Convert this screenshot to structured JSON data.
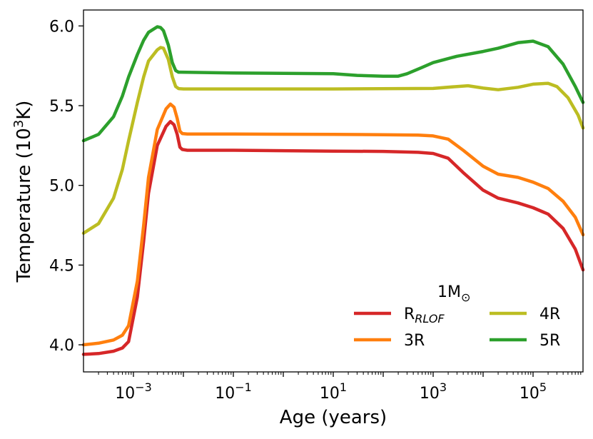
{
  "chart_data": {
    "type": "line",
    "xlabel": "Age (years)",
    "ylabel_main": "Temperature (10",
    "ylabel_sup": "3",
    "ylabel_end": "K)",
    "x_scale": "log",
    "xlim": [
      0.0001,
      1000000
    ],
    "ylim": [
      3.83,
      6.1
    ],
    "x_ticks": [
      {
        "value": 0.001,
        "base": "10",
        "exp": "−3"
      },
      {
        "value": 0.1,
        "base": "10",
        "exp": "−1"
      },
      {
        "value": 10,
        "base": "10",
        "exp": "1"
      },
      {
        "value": 1000,
        "base": "10",
        "exp": "3"
      },
      {
        "value": 100000,
        "base": "10",
        "exp": "5"
      }
    ],
    "y_ticks": [
      4.0,
      4.5,
      5.0,
      5.5,
      6.0
    ],
    "y_tick_labels": [
      "4.0",
      "4.5",
      "5.0",
      "5.5",
      "6.0"
    ],
    "grid": false,
    "legend": {
      "title_main": "1M",
      "title_sub": "⊙",
      "placement": "lower-right",
      "columns": 2
    },
    "series": [
      {
        "name": "R",
        "name_sub": "RLOF",
        "color": "#d62728",
        "points": [
          [
            0.0001,
            3.94
          ],
          [
            0.0002,
            3.945
          ],
          [
            0.0004,
            3.96
          ],
          [
            0.0006,
            3.98
          ],
          [
            0.0008,
            4.02
          ],
          [
            0.0012,
            4.3
          ],
          [
            0.0016,
            4.65
          ],
          [
            0.002,
            4.95
          ],
          [
            0.003,
            5.25
          ],
          [
            0.0045,
            5.37
          ],
          [
            0.0055,
            5.4
          ],
          [
            0.0065,
            5.38
          ],
          [
            0.0075,
            5.32
          ],
          [
            0.0085,
            5.24
          ],
          [
            0.0095,
            5.225
          ],
          [
            0.012,
            5.22
          ],
          [
            0.1,
            5.22
          ],
          [
            10,
            5.215
          ],
          [
            100,
            5.213
          ],
          [
            500,
            5.207
          ],
          [
            1000,
            5.2
          ],
          [
            2000,
            5.17
          ],
          [
            4000,
            5.08
          ],
          [
            10000,
            4.97
          ],
          [
            20000,
            4.92
          ],
          [
            50000,
            4.89
          ],
          [
            100000,
            4.86
          ],
          [
            200000,
            4.82
          ],
          [
            400000,
            4.73
          ],
          [
            700000,
            4.6
          ],
          [
            1000000,
            4.47
          ]
        ]
      },
      {
        "name": "3R",
        "color": "#ff7f0e",
        "points": [
          [
            0.0001,
            4.0
          ],
          [
            0.0002,
            4.01
          ],
          [
            0.0004,
            4.03
          ],
          [
            0.0006,
            4.06
          ],
          [
            0.0008,
            4.12
          ],
          [
            0.0012,
            4.4
          ],
          [
            0.0016,
            4.75
          ],
          [
            0.002,
            5.05
          ],
          [
            0.003,
            5.35
          ],
          [
            0.0045,
            5.48
          ],
          [
            0.0055,
            5.51
          ],
          [
            0.0065,
            5.49
          ],
          [
            0.0075,
            5.42
          ],
          [
            0.0085,
            5.34
          ],
          [
            0.0095,
            5.325
          ],
          [
            0.012,
            5.322
          ],
          [
            0.1,
            5.322
          ],
          [
            10,
            5.32
          ],
          [
            100,
            5.318
          ],
          [
            500,
            5.315
          ],
          [
            1000,
            5.31
          ],
          [
            2000,
            5.29
          ],
          [
            4000,
            5.22
          ],
          [
            10000,
            5.12
          ],
          [
            20000,
            5.07
          ],
          [
            50000,
            5.05
          ],
          [
            100000,
            5.02
          ],
          [
            200000,
            4.98
          ],
          [
            400000,
            4.9
          ],
          [
            700000,
            4.8
          ],
          [
            1000000,
            4.69
          ]
        ]
      },
      {
        "name": "4R",
        "color": "#bcbd22",
        "points": [
          [
            0.0001,
            4.7
          ],
          [
            0.0002,
            4.76
          ],
          [
            0.0004,
            4.92
          ],
          [
            0.0006,
            5.1
          ],
          [
            0.0008,
            5.28
          ],
          [
            0.0012,
            5.52
          ],
          [
            0.0016,
            5.68
          ],
          [
            0.002,
            5.78
          ],
          [
            0.003,
            5.85
          ],
          [
            0.0035,
            5.865
          ],
          [
            0.004,
            5.86
          ],
          [
            0.005,
            5.79
          ],
          [
            0.006,
            5.68
          ],
          [
            0.007,
            5.62
          ],
          [
            0.008,
            5.607
          ],
          [
            0.01,
            5.605
          ],
          [
            0.1,
            5.605
          ],
          [
            10,
            5.605
          ],
          [
            1000,
            5.608
          ],
          [
            3000,
            5.62
          ],
          [
            5000,
            5.625
          ],
          [
            10000,
            5.61
          ],
          [
            20000,
            5.6
          ],
          [
            50000,
            5.615
          ],
          [
            100000,
            5.635
          ],
          [
            200000,
            5.64
          ],
          [
            300000,
            5.62
          ],
          [
            500000,
            5.55
          ],
          [
            800000,
            5.44
          ],
          [
            1000000,
            5.36
          ]
        ]
      },
      {
        "name": "5R",
        "color": "#2ca02c",
        "points": [
          [
            0.0001,
            5.28
          ],
          [
            0.0002,
            5.32
          ],
          [
            0.0004,
            5.43
          ],
          [
            0.0006,
            5.56
          ],
          [
            0.0008,
            5.68
          ],
          [
            0.0012,
            5.82
          ],
          [
            0.0016,
            5.91
          ],
          [
            0.002,
            5.96
          ],
          [
            0.003,
            5.995
          ],
          [
            0.0035,
            5.99
          ],
          [
            0.004,
            5.97
          ],
          [
            0.005,
            5.88
          ],
          [
            0.006,
            5.77
          ],
          [
            0.007,
            5.72
          ],
          [
            0.008,
            5.71
          ],
          [
            0.1,
            5.705
          ],
          [
            10,
            5.7
          ],
          [
            30,
            5.69
          ],
          [
            100,
            5.685
          ],
          [
            200,
            5.685
          ],
          [
            300,
            5.7
          ],
          [
            600,
            5.74
          ],
          [
            1000,
            5.77
          ],
          [
            3000,
            5.81
          ],
          [
            10000,
            5.84
          ],
          [
            20000,
            5.86
          ],
          [
            50000,
            5.895
          ],
          [
            100000,
            5.905
          ],
          [
            200000,
            5.87
          ],
          [
            400000,
            5.76
          ],
          [
            700000,
            5.62
          ],
          [
            1000000,
            5.52
          ]
        ]
      }
    ]
  }
}
